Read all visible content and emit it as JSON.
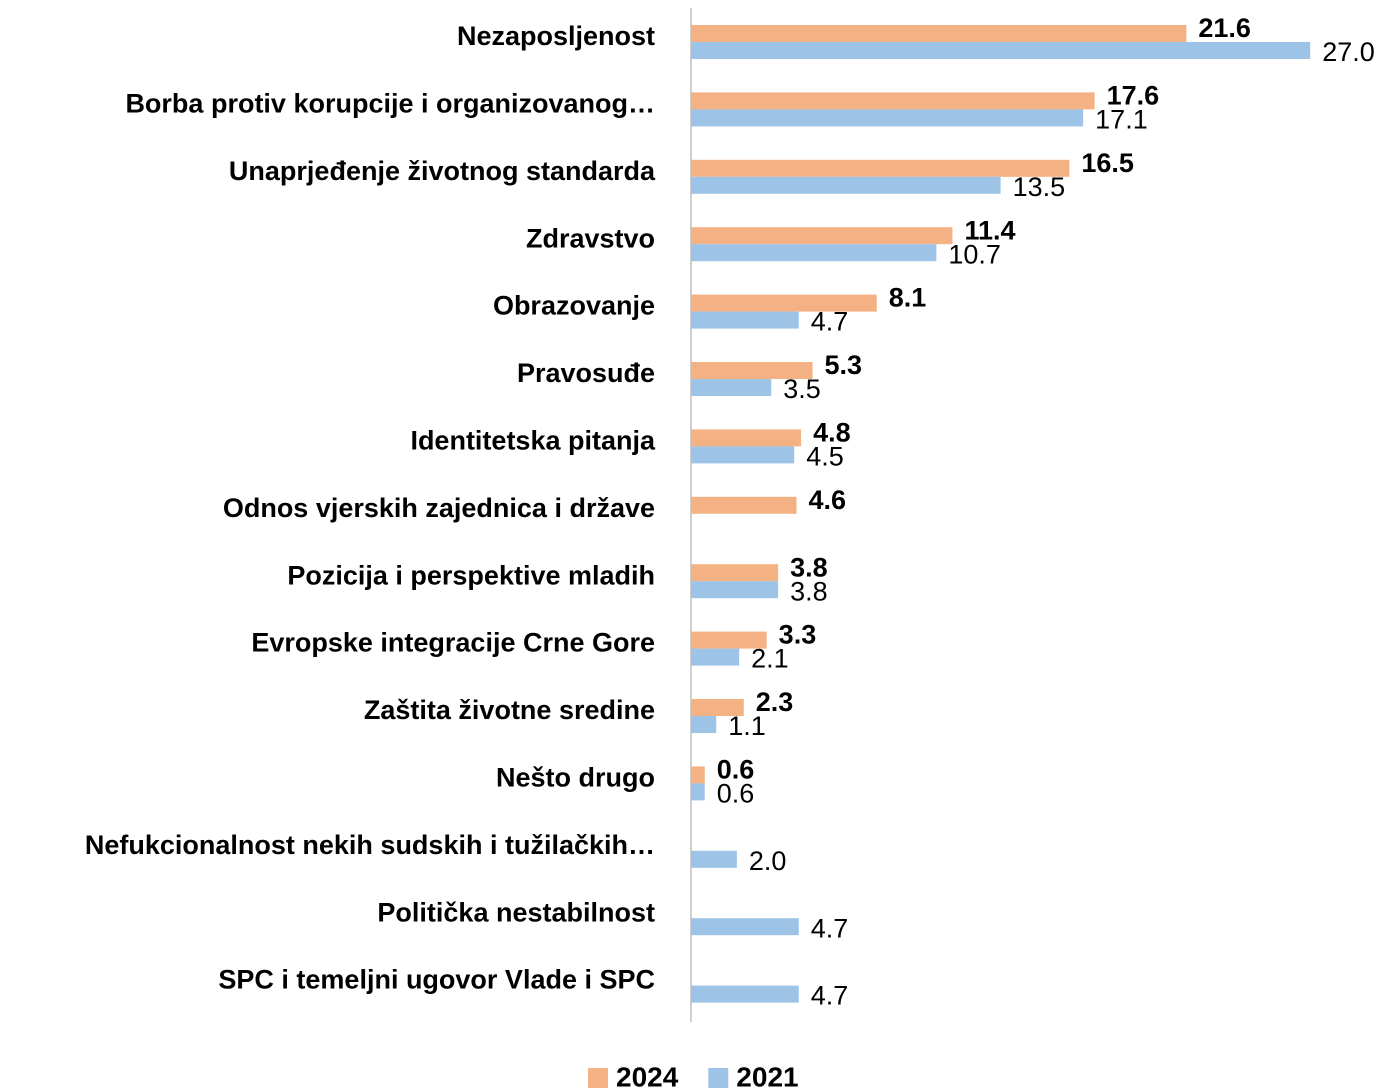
{
  "chart_data": {
    "type": "bar",
    "orientation": "horizontal",
    "categories": [
      "Nezaposljenost",
      "Borba protiv korupcije i organizovanog…",
      "Unaprjeđenje životnog standarda",
      "Zdravstvo",
      "Obrazovanje",
      "Pravosuđe",
      "Identitetska pitanja",
      "Odnos vjerskih zajednica i države",
      "Pozicija i perspektive mladih",
      "Evropske integracije Crne Gore",
      "Zaštita životne sredine",
      "Nešto drugo",
      "Nefukcionalnost nekih sudskih i tužilačkih…",
      "Politička nestabilnost",
      "SPC i temeljni ugovor Vlade i SPC"
    ],
    "series": [
      {
        "name": "2024",
        "color": "#f4b183",
        "values": [
          21.6,
          17.6,
          16.5,
          11.4,
          8.1,
          5.3,
          4.8,
          4.6,
          3.8,
          3.3,
          2.3,
          0.6,
          null,
          null,
          null
        ]
      },
      {
        "name": "2021",
        "color": "#9dc3e6",
        "values": [
          27.0,
          17.1,
          13.5,
          10.7,
          4.7,
          3.5,
          4.5,
          null,
          3.8,
          2.1,
          1.1,
          0.6,
          2.0,
          4.7,
          4.7
        ],
        "value_labels": [
          "27.0",
          "17.1",
          "13.5",
          "10.7",
          "4.7",
          "3.5",
          "4.5",
          null,
          "3.8",
          "2.1",
          "1.1",
          "0.6",
          "2.0",
          "4.7",
          "4.7"
        ]
      }
    ],
    "xlim": [
      0,
      30
    ],
    "legend": "bottom"
  }
}
